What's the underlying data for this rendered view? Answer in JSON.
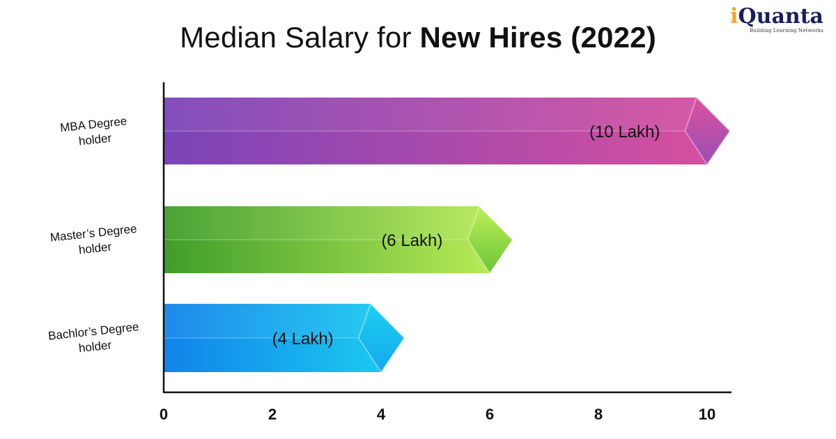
{
  "header": {
    "title_regular": "Median Salary for",
    "title_bold": "New Hires (2022)"
  },
  "logo": {
    "first_letter": "i",
    "rest": "Quanta",
    "tagline": "Building Learning Networks",
    "letter_color": "#f5a623",
    "name_color": "#1b1f5e"
  },
  "chart_data": {
    "type": "bar",
    "orientation": "horizontal",
    "title": "Median Salary for New Hires (2022)",
    "categories": [
      [
        "MBA Degree",
        "holder"
      ],
      [
        "Master’s Degree",
        "holder"
      ],
      [
        "Bachlor’s Degree",
        "holder"
      ]
    ],
    "values": [
      10,
      6,
      4
    ],
    "data_labels": [
      "(10 Lakh)",
      "(6 Lakh)",
      "(4 Lakh)"
    ],
    "xlim": [
      0,
      10
    ],
    "xticks": [
      0,
      2,
      4,
      6,
      8,
      10
    ],
    "grid": false,
    "legend": "none",
    "colors": [
      {
        "start": "#7b44b8",
        "end": "#d9509e",
        "tip": "#9b4fb5"
      },
      {
        "start": "#3f9d2a",
        "end": "#bff05a",
        "tip": "#6ac437"
      },
      {
        "start": "#1183ea",
        "end": "#1cd0f0",
        "tip": "#15a8ee"
      }
    ]
  }
}
